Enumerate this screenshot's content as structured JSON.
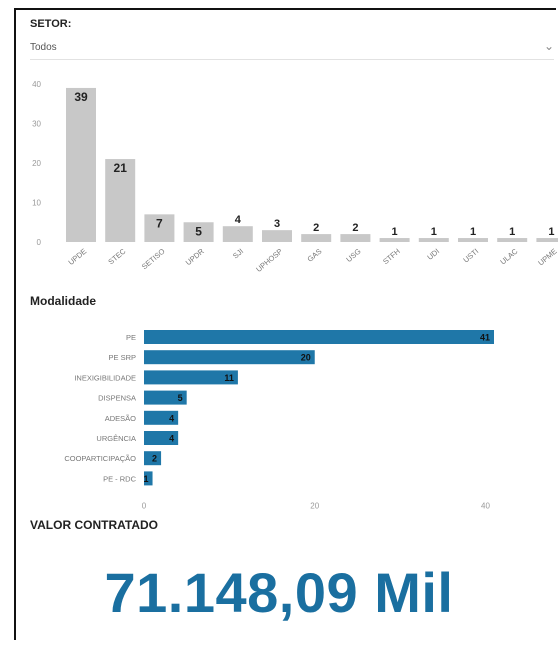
{
  "filter": {
    "label": "SETOR:",
    "selected": "Todos"
  },
  "section_modalidade": "Modalidade",
  "section_valor": "VALOR CONTRATADO",
  "valor_contratado": "71.148,09 Mil",
  "colors": {
    "setor_bar": "#c8c8c8",
    "modalidade_bar": "#1f77a8",
    "valor_text": "#1a6fa0"
  },
  "icons": {
    "dropdown": "chevron-down-icon"
  },
  "chart_data": [
    {
      "type": "bar",
      "orientation": "vertical",
      "categories": [
        "UPDE",
        "STEC",
        "SETISO",
        "UPDR",
        "SJI",
        "UPHOSP",
        "GAS",
        "USG",
        "STFH",
        "UDI",
        "USTI",
        "ULAC",
        "UPME"
      ],
      "values": [
        39,
        21,
        7,
        5,
        4,
        3,
        2,
        2,
        1,
        1,
        1,
        1,
        1
      ],
      "yticks": [
        0,
        10,
        20,
        30,
        40
      ],
      "ylim": [
        0,
        40
      ],
      "grid": false
    },
    {
      "type": "bar",
      "orientation": "horizontal",
      "categories": [
        "PE",
        "PE SRP",
        "INEXIGIBILIDADE",
        "DISPENSA",
        "ADESÃO",
        "URGÊNCIA",
        "COOPARTICIPAÇÃO",
        "PE - RDC"
      ],
      "values": [
        41,
        20,
        11,
        5,
        4,
        4,
        2,
        1
      ],
      "xticks": [
        0,
        20,
        40
      ],
      "xlim": [
        0,
        41
      ],
      "grid": false
    }
  ]
}
